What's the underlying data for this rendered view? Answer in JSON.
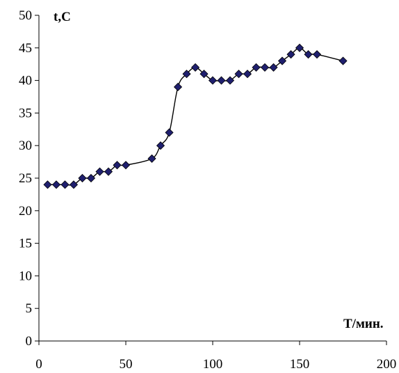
{
  "chart_data": {
    "type": "line",
    "title": "",
    "xlabel": "T/мин.",
    "ylabel": "t,C",
    "xlim": [
      0,
      200
    ],
    "ylim": [
      0,
      50
    ],
    "x_ticks": [
      "0",
      "50",
      "100",
      "150",
      "200"
    ],
    "y_ticks": [
      "0",
      "5",
      "10",
      "15",
      "20",
      "25",
      "30",
      "35",
      "40",
      "45",
      "50"
    ],
    "grid": false,
    "legend": "none",
    "marker": "diamond",
    "marker_color": "#1f1f6e",
    "line_color": "#000000",
    "series": [
      {
        "x": [
          5,
          10,
          15,
          20,
          25,
          30,
          35,
          40,
          45,
          50,
          65,
          70,
          75,
          80,
          85,
          90,
          95,
          100,
          105,
          110,
          115,
          120,
          125,
          130,
          135,
          140,
          145,
          150,
          155,
          160,
          175
        ],
        "y": [
          24,
          24,
          24,
          24,
          25,
          25,
          26,
          26,
          27,
          27,
          28,
          30,
          32,
          39,
          41,
          42,
          41,
          40,
          40,
          40,
          41,
          41,
          42,
          42,
          42,
          43,
          44,
          45,
          44,
          44,
          43
        ]
      }
    ]
  }
}
